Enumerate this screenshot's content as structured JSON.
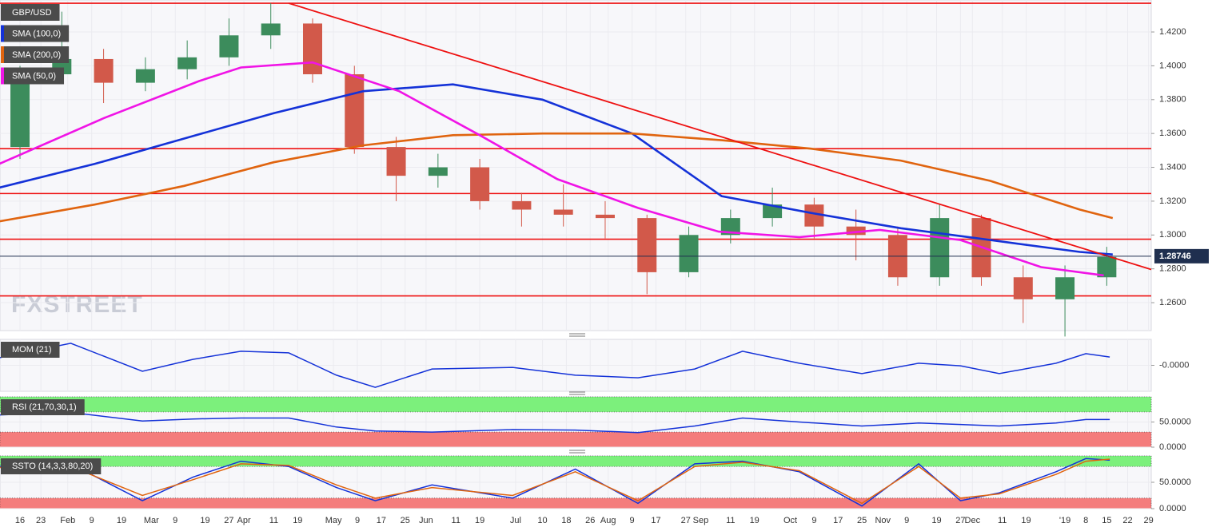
{
  "chart_data": [
    {
      "type": "candlestick",
      "title": "GBP/USD",
      "watermark": "FXSTREET",
      "xlim": [
        8.3,
        393.9
      ],
      "xticks": [
        {
          "value": 15,
          "label": "16"
        },
        {
          "value": 22,
          "label": "23"
        },
        {
          "value": 31,
          "label": "Feb"
        },
        {
          "value": 39,
          "label": "9"
        },
        {
          "value": 49,
          "label": "19"
        },
        {
          "value": 59,
          "label": "Mar"
        },
        {
          "value": 67,
          "label": "9"
        },
        {
          "value": 77,
          "label": "19"
        },
        {
          "value": 85,
          "label": "27"
        },
        {
          "value": 90,
          "label": "Apr"
        },
        {
          "value": 100,
          "label": "11"
        },
        {
          "value": 108,
          "label": "19"
        },
        {
          "value": 120,
          "label": "May"
        },
        {
          "value": 128,
          "label": "9"
        },
        {
          "value": 136,
          "label": "17"
        },
        {
          "value": 144,
          "label": "25"
        },
        {
          "value": 151,
          "label": "Jun"
        },
        {
          "value": 161,
          "label": "11"
        },
        {
          "value": 169,
          "label": "19"
        },
        {
          "value": 181,
          "label": "Jul"
        },
        {
          "value": 190,
          "label": "10"
        },
        {
          "value": 198,
          "label": "18"
        },
        {
          "value": 206,
          "label": "26"
        },
        {
          "value": 212,
          "label": "Aug"
        },
        {
          "value": 220,
          "label": "9"
        },
        {
          "value": 228,
          "label": "17"
        },
        {
          "value": 238,
          "label": "27"
        },
        {
          "value": 243,
          "label": "Sep"
        },
        {
          "value": 253,
          "label": "11"
        },
        {
          "value": 261,
          "label": "19"
        },
        {
          "value": 273,
          "label": "Oct"
        },
        {
          "value": 281,
          "label": "9"
        },
        {
          "value": 289,
          "label": "17"
        },
        {
          "value": 297,
          "label": "25"
        },
        {
          "value": 304,
          "label": "Nov"
        },
        {
          "value": 312,
          "label": "9"
        },
        {
          "value": 322,
          "label": "19"
        },
        {
          "value": 330,
          "label": "27"
        },
        {
          "value": 334,
          "label": "Dec"
        },
        {
          "value": 344,
          "label": "11"
        },
        {
          "value": 352,
          "label": "19"
        },
        {
          "value": 365,
          "label": "'19"
        },
        {
          "value": 372,
          "label": "8"
        },
        {
          "value": 379,
          "label": "15"
        },
        {
          "value": 386,
          "label": "22"
        },
        {
          "value": 393,
          "label": "29"
        }
      ],
      "ylim": [
        1.2435,
        1.4389
      ],
      "yticks": [
        {
          "value": 1.26,
          "label": "1.2600"
        },
        {
          "value": 1.28,
          "label": "1.2800"
        },
        {
          "value": 1.3,
          "label": "1.3000"
        },
        {
          "value": 1.32,
          "label": "1.3200"
        },
        {
          "value": 1.34,
          "label": "1.3400"
        },
        {
          "value": 1.36,
          "label": "1.3600"
        },
        {
          "value": 1.38,
          "label": "1.3800"
        },
        {
          "value": 1.4,
          "label": "1.4000"
        },
        {
          "value": 1.42,
          "label": "1.4200"
        }
      ],
      "up_color": "#3c8c5c",
      "down_color": "#d2594a",
      "x": [
        15,
        29,
        43,
        57,
        71,
        85,
        99,
        113,
        127,
        141,
        155,
        169,
        183,
        197,
        211,
        225,
        239,
        253,
        267,
        281,
        295,
        309,
        323,
        337,
        351,
        365,
        379
      ],
      "open": [
        1.352,
        1.395,
        1.404,
        1.39,
        1.398,
        1.405,
        1.418,
        1.425,
        1.395,
        1.352,
        1.335,
        1.34,
        1.32,
        1.315,
        1.312,
        1.31,
        1.278,
        1.3,
        1.31,
        1.318,
        1.305,
        1.3,
        1.275,
        1.31,
        1.275,
        1.262,
        1.275
      ],
      "high": [
        1.4,
        1.432,
        1.41,
        1.405,
        1.415,
        1.428,
        1.437,
        1.428,
        1.4,
        1.358,
        1.348,
        1.345,
        1.325,
        1.33,
        1.32,
        1.312,
        1.305,
        1.315,
        1.328,
        1.322,
        1.315,
        1.305,
        1.318,
        1.312,
        1.282,
        1.282,
        1.293
      ],
      "low": [
        1.345,
        1.39,
        1.378,
        1.385,
        1.392,
        1.4,
        1.41,
        1.39,
        1.348,
        1.32,
        1.328,
        1.315,
        1.305,
        1.305,
        1.298,
        1.265,
        1.275,
        1.295,
        1.305,
        1.298,
        1.285,
        1.27,
        1.27,
        1.27,
        1.248,
        1.24,
        1.27
      ],
      "close": [
        1.395,
        1.404,
        1.39,
        1.398,
        1.405,
        1.418,
        1.425,
        1.395,
        1.352,
        1.335,
        1.34,
        1.32,
        1.315,
        1.312,
        1.31,
        1.278,
        1.3,
        1.31,
        1.318,
        1.305,
        1.3,
        1.275,
        1.31,
        1.275,
        1.262,
        1.275,
        1.287
      ],
      "series": [
        {
          "name": "SMA (100,0)",
          "color": "#1432d8",
          "x": [
            8,
            40,
            70,
            100,
            130,
            160,
            190,
            220,
            250,
            280,
            310,
            340,
            370,
            381
          ],
          "values": [
            1.328,
            1.342,
            1.357,
            1.372,
            1.385,
            1.389,
            1.38,
            1.36,
            1.323,
            1.313,
            1.304,
            1.297,
            1.29,
            1.2885
          ]
        },
        {
          "name": "SMA (200,0)",
          "color": "#e0640f",
          "x": [
            8,
            40,
            70,
            100,
            130,
            160,
            190,
            220,
            250,
            280,
            310,
            340,
            370,
            381
          ],
          "values": [
            1.308,
            1.318,
            1.329,
            1.343,
            1.353,
            1.359,
            1.36,
            1.36,
            1.356,
            1.351,
            1.344,
            1.332,
            1.315,
            1.31
          ]
        },
        {
          "name": "SMA (50,0)",
          "color": "#f014e6",
          "x": [
            8,
            43,
            75,
            89,
            113,
            142,
            169,
            195,
            222,
            249,
            276,
            303,
            330,
            357,
            378
          ],
          "values": [
            1.342,
            1.369,
            1.391,
            1.399,
            1.402,
            1.385,
            1.359,
            1.333,
            1.316,
            1.302,
            1.2987,
            1.303,
            1.297,
            1.281,
            1.2761
          ]
        }
      ],
      "levels": [
        1.437,
        1.351,
        1.3245,
        1.2975,
        1.264
      ],
      "level_color": "#ee1111",
      "trendline": {
        "x": [
          105,
          393.9
        ],
        "values": [
          1.437,
          1.2796
        ],
        "color": "#ee1111"
      },
      "last": {
        "value": 1.28746,
        "label": "1.28746",
        "color": "#1f2f4f"
      }
    },
    {
      "type": "line",
      "title": "MOM (21)",
      "ylim": [
        -0.1,
        0.1
      ],
      "yticks": [
        {
          "value": 0,
          "label": "-0.0000"
        }
      ],
      "series": [
        {
          "color": "#1432d8",
          "x": [
            8,
            32,
            56,
            73,
            89,
            105,
            121,
            134,
            153,
            180,
            201,
            222,
            241,
            257,
            276,
            297,
            316,
            330,
            343,
            362,
            372,
            380
          ],
          "values": [
            0.029,
            0.085,
            -0.023,
            0.023,
            0.054,
            0.048,
            -0.038,
            -0.085,
            -0.014,
            -0.008,
            -0.038,
            -0.048,
            -0.014,
            0.054,
            0.008,
            -0.032,
            0.008,
            -0.002,
            -0.032,
            0.008,
            0.045,
            0.032
          ]
        }
      ]
    },
    {
      "type": "line",
      "title": "RSI (21,70,30,1)",
      "ylim": [
        0,
        100
      ],
      "yticks": [
        {
          "value": 0,
          "label": "0.0000"
        },
        {
          "value": 50,
          "label": "50.0000"
        }
      ],
      "zones": [
        {
          "from": 70,
          "to": 100,
          "color": "#7cf07c"
        },
        {
          "from": 0,
          "to": 30,
          "color": "#f47c7c"
        }
      ],
      "series": [
        {
          "color": "#1432d8",
          "x": [
            8,
            32,
            56,
            73,
            89,
            105,
            121,
            134,
            153,
            180,
            201,
            222,
            241,
            257,
            276,
            297,
            316,
            330,
            343,
            362,
            372,
            380
          ],
          "values": [
            64,
            69,
            52,
            56,
            58,
            58,
            40,
            32,
            30,
            35,
            34,
            29,
            42,
            58,
            50,
            42,
            48,
            45,
            42,
            48,
            55,
            55
          ]
        }
      ]
    },
    {
      "type": "line",
      "title": "SSTO (14,3,3,80,20)",
      "ylim": [
        0,
        100
      ],
      "yticks": [
        {
          "value": 0,
          "label": "0.0000"
        },
        {
          "value": 50,
          "label": "50.0000"
        }
      ],
      "zones": [
        {
          "from": 80,
          "to": 100,
          "color": "#7cf07c"
        },
        {
          "from": 0,
          "to": 20,
          "color": "#f47c7c"
        }
      ],
      "series": [
        {
          "color": "#1432d8",
          "x": [
            8,
            32,
            56,
            73,
            89,
            105,
            121,
            134,
            153,
            180,
            201,
            222,
            241,
            257,
            276,
            297,
            316,
            330,
            343,
            362,
            372,
            380
          ],
          "values": [
            80,
            85,
            15,
            60,
            90,
            80,
            40,
            15,
            45,
            20,
            75,
            10,
            85,
            90,
            70,
            5,
            85,
            15,
            30,
            70,
            95,
            92
          ]
        },
        {
          "color": "#e0640f",
          "x": [
            8,
            32,
            56,
            73,
            89,
            105,
            121,
            134,
            153,
            180,
            201,
            222,
            241,
            257,
            276,
            297,
            316,
            330,
            343,
            362,
            372,
            380
          ],
          "values": [
            78,
            80,
            25,
            55,
            85,
            82,
            45,
            20,
            40,
            25,
            70,
            15,
            80,
            88,
            72,
            10,
            80,
            20,
            28,
            65,
            90,
            94
          ]
        }
      ]
    }
  ]
}
